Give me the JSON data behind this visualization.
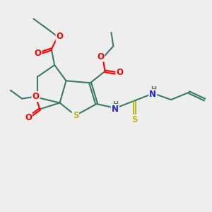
{
  "background_color": "#eeeeee",
  "bond_color": "#3a7a6a",
  "atom_colors": {
    "O": "#ff0000",
    "N": "#2020cc",
    "S_thio": "#b8b820",
    "S_ring": "#b8b820",
    "H": "#607878",
    "C": "#3a7a6a"
  },
  "figsize": [
    3.0,
    3.0
  ],
  "dpi": 100
}
